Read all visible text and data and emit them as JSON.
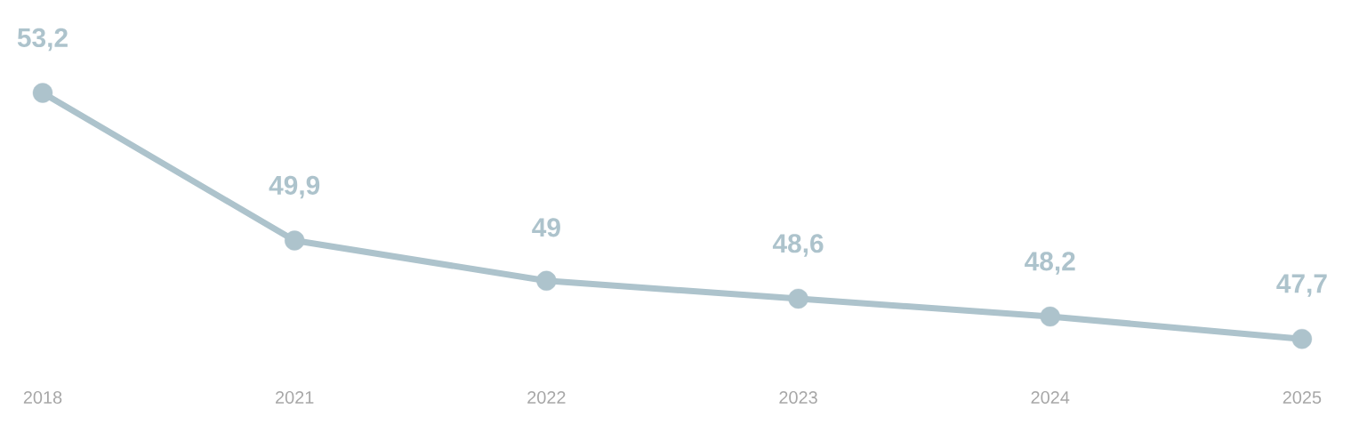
{
  "chart_data": {
    "type": "line",
    "categories": [
      "2018",
      "2021",
      "2022",
      "2023",
      "2024",
      "2025"
    ],
    "series": [
      {
        "color": "#adc3cc",
        "values": [
          53.2,
          49.9,
          49,
          48.6,
          48.2,
          47.7
        ],
        "value_labels": [
          "53,2",
          "49,9",
          "49",
          "48,6",
          "48,2",
          "47,7"
        ]
      }
    ],
    "marker": "circle",
    "line_style": "solid",
    "grid": false,
    "legend": false
  }
}
